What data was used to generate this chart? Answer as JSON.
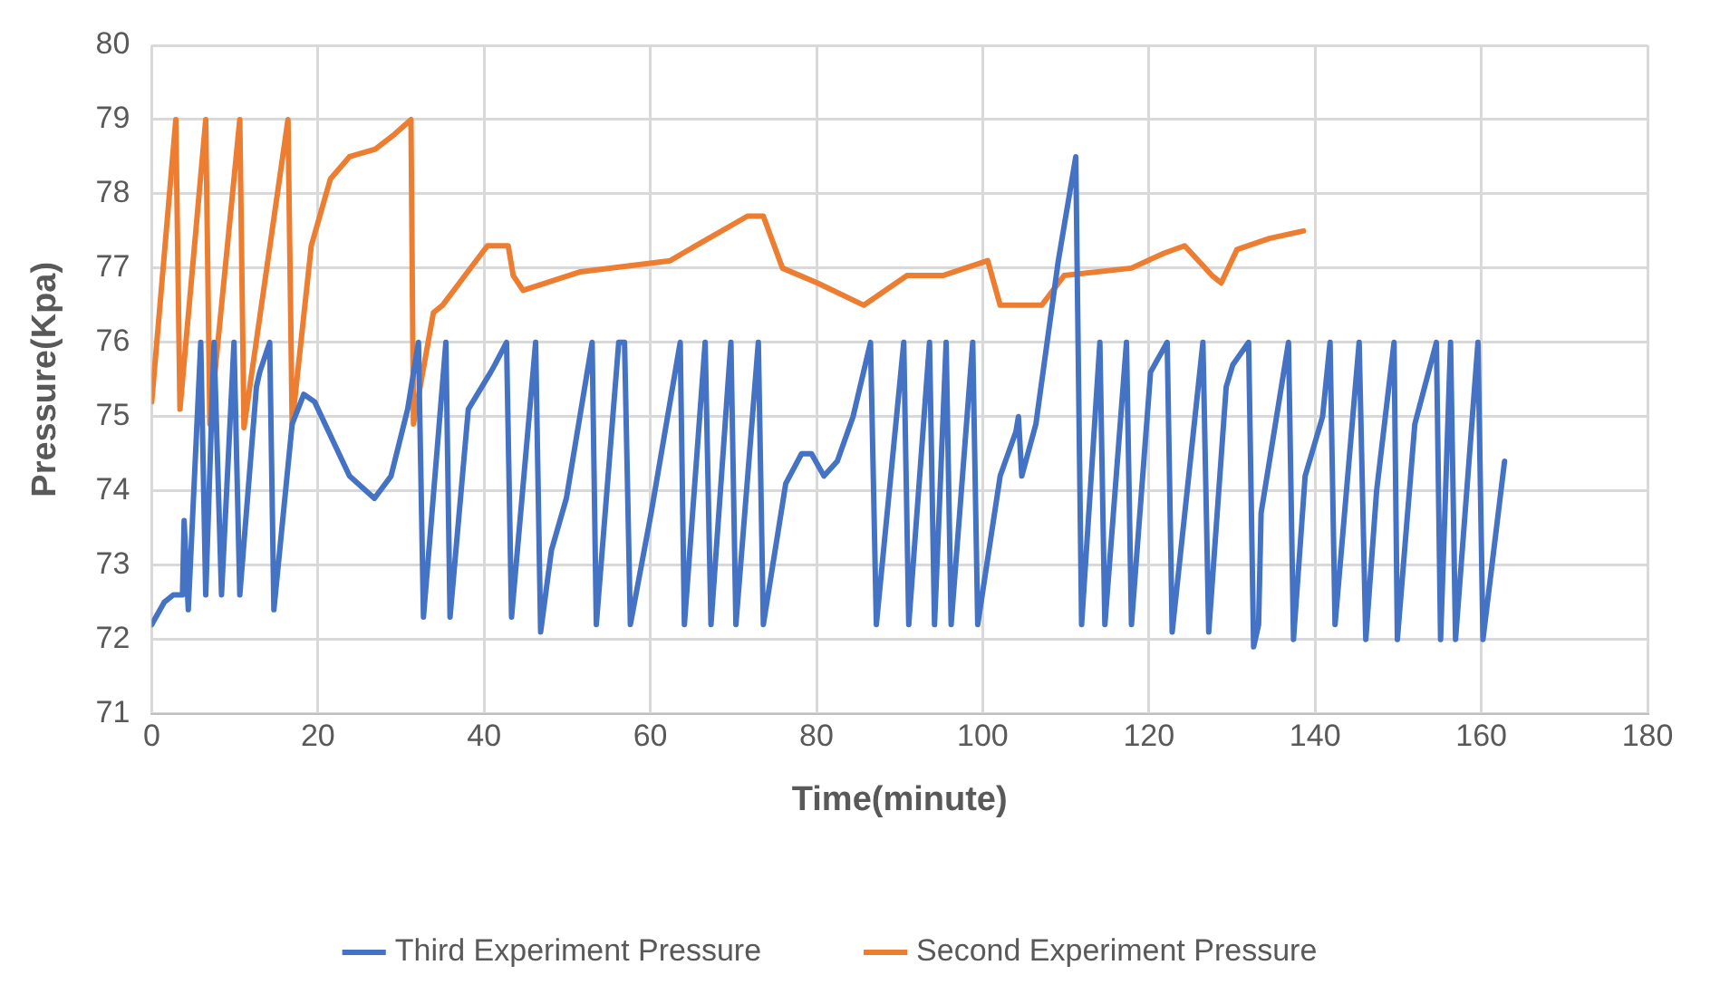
{
  "chart_data": {
    "type": "line",
    "xlabel": "Time(minute)",
    "ylabel": "Pressure(Kpa)",
    "xlim": [
      0,
      180
    ],
    "xticks": [
      0,
      20,
      40,
      60,
      80,
      100,
      120,
      140,
      160,
      180
    ],
    "ylim": [
      71,
      80
    ],
    "yticks": [
      71,
      72,
      73,
      74,
      75,
      76,
      77,
      78,
      79,
      80
    ],
    "grid": true,
    "legend": "bottom",
    "marker": "none",
    "line_style": "solid",
    "series": [
      {
        "name": "Third Experiment Pressure",
        "color": "#4472c4",
        "x": [
          0,
          1.5,
          2.6,
          3.7,
          3.9,
          4.4,
          5.9,
          6.5,
          7.5,
          8.4,
          9.9,
          10.6,
          12.6,
          13.0,
          14.2,
          14.7,
          16.9,
          18.3,
          19.6,
          23.8,
          26.8,
          28.8,
          30.8,
          32.1,
          32.7,
          35.4,
          35.9,
          38.1,
          40.8,
          41.3,
          42.7,
          43.3,
          46.2,
          46.8,
          48.1,
          49.9,
          53.0,
          53.5,
          56.2,
          56.9,
          57.6,
          60.1,
          63.6,
          64.1,
          66.6,
          67.3,
          69.7,
          70.3,
          73.0,
          73.6,
          76.3,
          78.2,
          79.4,
          80.9,
          82.5,
          84.4,
          86.5,
          87.2,
          90.5,
          91.1,
          93.6,
          94.2,
          95.6,
          96.2,
          98.8,
          99.4,
          102.1,
          104.0,
          104.3,
          104.7,
          106.4,
          109.1,
          111.2,
          111.9,
          114.1,
          114.7,
          117.3,
          117.9,
          120.2,
          122.2,
          122.8,
          126.5,
          127.2,
          129.3,
          130.1,
          132.0,
          132.6,
          133.2,
          133.5,
          136.8,
          137.4,
          138.8,
          140.9,
          141.8,
          142.4,
          145.3,
          146.1,
          147.4,
          149.5,
          149.9,
          152.0,
          154.6,
          155.1,
          156.3,
          156.9,
          159.6,
          160.2,
          162.8
        ],
        "values": [
          72.2,
          72.5,
          72.6,
          72.6,
          73.6,
          72.4,
          76,
          72.6,
          76,
          72.6,
          76,
          72.6,
          75.4,
          75.6,
          76,
          72.4,
          74.9,
          75.3,
          75.2,
          74.2,
          73.9,
          74.2,
          75.1,
          76,
          72.3,
          76,
          72.3,
          75.1,
          75.6,
          75.7,
          76,
          72.3,
          76,
          72.1,
          73.2,
          73.9,
          76,
          72.2,
          76,
          76,
          72.2,
          73.7,
          76,
          72.2,
          76,
          72.2,
          76,
          72.2,
          76,
          72.2,
          74.1,
          74.5,
          74.5,
          74.2,
          74.4,
          75,
          76,
          72.2,
          76,
          72.2,
          76,
          72.2,
          76,
          72.2,
          76,
          72.2,
          74.2,
          74.8,
          75,
          74.2,
          74.9,
          77.1,
          78.5,
          72.2,
          76,
          72.2,
          76,
          72.2,
          75.6,
          76,
          72.1,
          76,
          72.1,
          75.4,
          75.7,
          76,
          71.9,
          72.2,
          73.7,
          76,
          72,
          74.2,
          75,
          76,
          72.2,
          76,
          72,
          74,
          76,
          72,
          74.9,
          76,
          72,
          76,
          72,
          76,
          72,
          74.4
        ]
      },
      {
        "name": "Second Experiment Pressure",
        "color": "#ed7d31",
        "x": [
          0,
          2.9,
          3.4,
          6.5,
          7.0,
          10.6,
          11.1,
          16.4,
          16.9,
          19.2,
          21.5,
          23.8,
          26.9,
          29.2,
          31.2,
          31.5,
          33.9,
          35.0,
          37.7,
          40.4,
          42.9,
          43.5,
          44.7,
          51.6,
          62.4,
          63.9,
          71.7,
          73.6,
          75.9,
          80.1,
          85.7,
          90.9,
          95.2,
          100.6,
          102.1,
          107.1,
          109.8,
          117.9,
          121.8,
          124.3,
          127.6,
          128.7,
          130.6,
          134.5,
          138.6
        ],
        "values": [
          75.2,
          79,
          75.1,
          79,
          74.9,
          79,
          74.85,
          79,
          74.9,
          77.3,
          78.2,
          78.5,
          78.6,
          78.8,
          79,
          74.9,
          76.4,
          76.5,
          76.9,
          77.3,
          77.3,
          76.9,
          76.7,
          76.95,
          77.1,
          77.2,
          77.7,
          77.7,
          77,
          76.8,
          76.5,
          76.9,
          76.9,
          77.1,
          76.5,
          76.5,
          76.9,
          77,
          77.2,
          77.3,
          76.9,
          76.8,
          77.25,
          77.4,
          77.5
        ]
      }
    ]
  }
}
